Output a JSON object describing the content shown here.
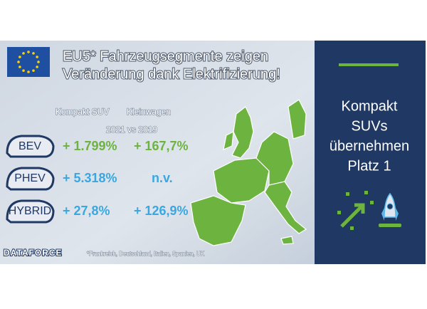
{
  "header": {
    "title_lines": [
      "EU5* Fahrzeugsegmente zeigen",
      "Veränderung dank Elektrifizierung!"
    ]
  },
  "table": {
    "columns": [
      "Kompakt SUV",
      "Kleinwagen"
    ],
    "period": "2021 vs 2019",
    "rows": [
      [
        "BEV",
        "+ 1.799%",
        "+ 167,7%"
      ],
      [
        "PHEV",
        "+ 5.318%",
        "n.v."
      ],
      [
        "HYBRID",
        "+ 27,8%",
        "+ 126,9%"
      ]
    ]
  },
  "footer": {
    "brand": "DATAFORCE",
    "note": "*Frankreich, Deutschland, Italien, Spanien, UK"
  },
  "sidebar": {
    "lines": [
      "Kompakt",
      "SUVs",
      "übernehmen",
      "Platz 1"
    ]
  }
}
